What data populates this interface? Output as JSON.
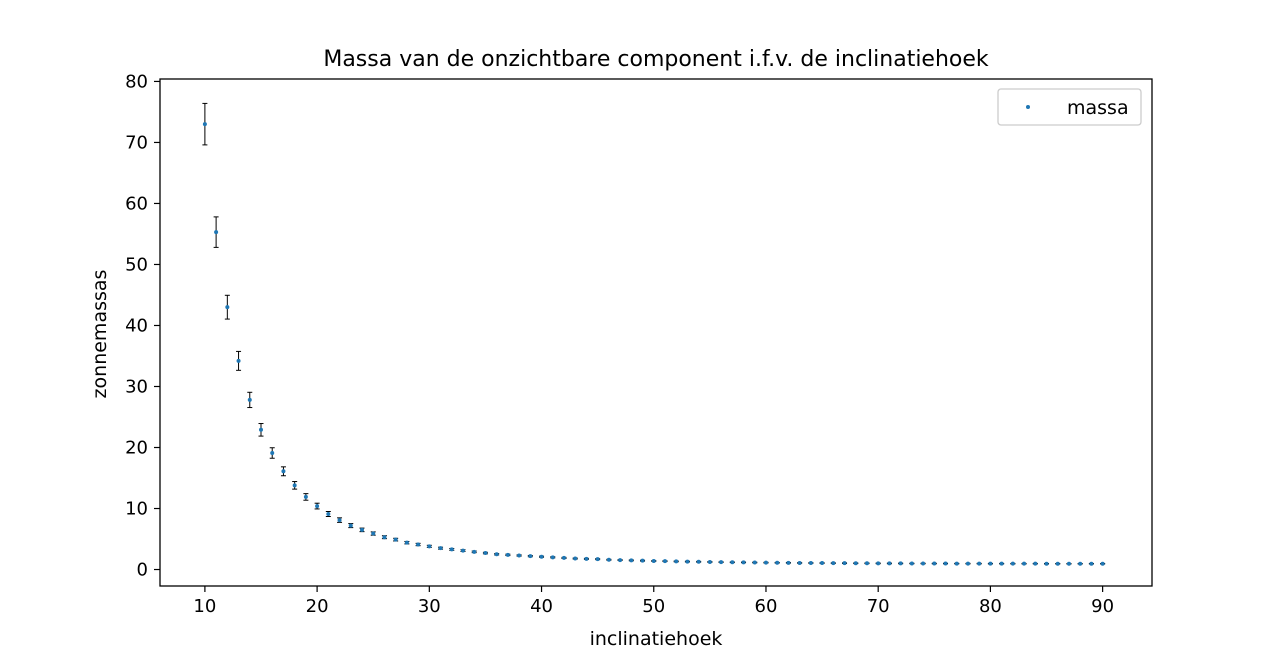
{
  "chart_data": {
    "type": "scatter",
    "title": "Massa van de onzichtbare component i.f.v. de inclinatiehoek",
    "xlabel": "inclinatiehoek",
    "ylabel": "zonnemassas",
    "xlim": [
      6,
      94.4
    ],
    "ylim": [
      -2.7,
      80.4
    ],
    "xticks": [
      10,
      20,
      30,
      40,
      50,
      60,
      70,
      80,
      90
    ],
    "yticks": [
      0,
      10,
      20,
      30,
      40,
      50,
      60,
      70,
      80
    ],
    "grid": false,
    "legend_position": "top-right",
    "colors": {
      "marker": "#1f77b4",
      "errorbar": "#000000"
    },
    "series": [
      {
        "name": "massa",
        "x": [
          10,
          11,
          12,
          13,
          14,
          15,
          16,
          17,
          18,
          19,
          20,
          21,
          22,
          23,
          24,
          25,
          26,
          27,
          28,
          29,
          30,
          31,
          32,
          33,
          34,
          35,
          36,
          37,
          38,
          39,
          40,
          41,
          42,
          43,
          44,
          45,
          46,
          47,
          48,
          49,
          50,
          51,
          52,
          53,
          54,
          55,
          56,
          57,
          58,
          59,
          60,
          61,
          62,
          63,
          64,
          65,
          66,
          67,
          68,
          69,
          70,
          71,
          72,
          73,
          74,
          75,
          76,
          77,
          78,
          79,
          80,
          81,
          82,
          83,
          84,
          85,
          86,
          87,
          88,
          89,
          90
        ],
        "y": [
          73.0,
          55.3,
          43.0,
          34.2,
          27.8,
          22.9,
          19.1,
          16.1,
          13.8,
          11.9,
          10.4,
          9.1,
          8.1,
          7.2,
          6.5,
          5.9,
          5.3,
          4.9,
          4.4,
          4.1,
          3.8,
          3.5,
          3.3,
          3.1,
          2.9,
          2.7,
          2.5,
          2.4,
          2.3,
          2.2,
          2.1,
          2.0,
          1.9,
          1.8,
          1.75,
          1.7,
          1.6,
          1.55,
          1.5,
          1.45,
          1.4,
          1.37,
          1.33,
          1.3,
          1.27,
          1.24,
          1.21,
          1.19,
          1.17,
          1.15,
          1.13,
          1.11,
          1.1,
          1.08,
          1.07,
          1.06,
          1.05,
          1.04,
          1.03,
          1.02,
          1.01,
          1.0,
          1.0,
          0.99,
          0.99,
          0.98,
          0.98,
          0.97,
          0.97,
          0.97,
          0.96,
          0.96,
          0.96,
          0.96,
          0.96,
          0.95,
          0.95,
          0.95,
          0.95,
          0.95,
          0.95
        ],
        "yerr": [
          3.4,
          2.5,
          1.95,
          1.55,
          1.25,
          1.03,
          0.86,
          0.73,
          0.62,
          0.54,
          0.47,
          0.41,
          0.37,
          0.33,
          0.29,
          0.27,
          0.24,
          0.22,
          0.2,
          0.19,
          0.17,
          0.16,
          0.15,
          0.14,
          0.13,
          0.12,
          0.11,
          0.11,
          0.1,
          0.1,
          0.09,
          0.09,
          0.09,
          0.08,
          0.08,
          0.08,
          0.07,
          0.07,
          0.07,
          0.07,
          0.06,
          0.06,
          0.06,
          0.06,
          0.06,
          0.06,
          0.05,
          0.05,
          0.05,
          0.05,
          0.05,
          0.05,
          0.05,
          0.05,
          0.05,
          0.05,
          0.05,
          0.05,
          0.05,
          0.05,
          0.05,
          0.05,
          0.05,
          0.04,
          0.04,
          0.04,
          0.04,
          0.04,
          0.04,
          0.04,
          0.04,
          0.04,
          0.04,
          0.04,
          0.04,
          0.04,
          0.04,
          0.04,
          0.04,
          0.04,
          0.04
        ]
      }
    ]
  }
}
